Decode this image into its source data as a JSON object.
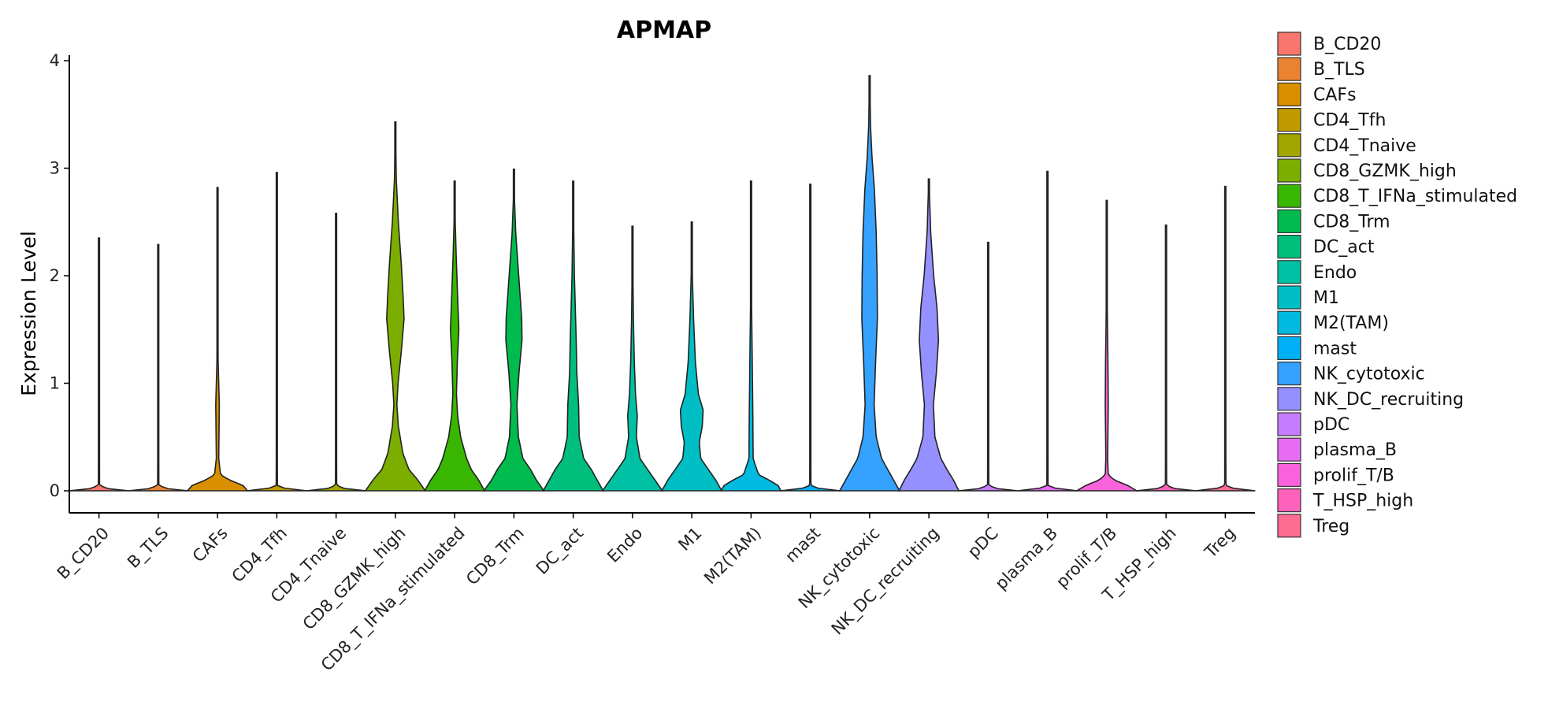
{
  "chart_data": {
    "type": "violin",
    "title": "APMAP",
    "xlabel": "",
    "ylabel": "Expression Level",
    "ylim": [
      -0.19,
      4.05
    ],
    "yticks": [
      0,
      1,
      2,
      3,
      4
    ],
    "grid": false,
    "legend_position": "right",
    "categories": [
      "B_CD20",
      "B_TLS",
      "CAFs",
      "CD4_Tfh",
      "CD4_Tnaive",
      "CD8_GZMK_high",
      "CD8_T_IFNa_stimulated",
      "CD8_Trm",
      "DC_act",
      "Endo",
      "M1",
      "M2(TAM)",
      "mast",
      "NK_cytotoxic",
      "NK_DC_recruiting",
      "pDC",
      "plasma_B",
      "prolif_T/B",
      "T_HSP_high",
      "Treg"
    ],
    "colors": [
      "#F8766D",
      "#EA8331",
      "#D89000",
      "#C09B00",
      "#A3A500",
      "#7CAE00",
      "#39B600",
      "#00BB4E",
      "#00BF7D",
      "#00C1A3",
      "#00BFC4",
      "#00BAE0",
      "#00B0F6",
      "#35A2FF",
      "#9590FF",
      "#C77CFF",
      "#E76BF3",
      "#FA62DB",
      "#FF62BC",
      "#FF6C91"
    ],
    "series": [
      {
        "name": "B_CD20",
        "max": 2.35,
        "profile": [
          [
            0,
            1.0
          ],
          [
            0.02,
            0.3
          ],
          [
            0.05,
            0.02
          ],
          [
            2.35,
            0.005
          ]
        ]
      },
      {
        "name": "B_TLS",
        "max": 2.29,
        "profile": [
          [
            0,
            1.0
          ],
          [
            0.02,
            0.3
          ],
          [
            0.05,
            0.02
          ],
          [
            2.29,
            0.005
          ]
        ]
      },
      {
        "name": "CAFs",
        "max": 2.82,
        "profile": [
          [
            0,
            1.0
          ],
          [
            0.05,
            0.85
          ],
          [
            0.1,
            0.4
          ],
          [
            0.15,
            0.1
          ],
          [
            0.3,
            0.04
          ],
          [
            0.8,
            0.06
          ],
          [
            1.2,
            0.02
          ],
          [
            2.0,
            0.008
          ],
          [
            2.82,
            0.004
          ]
        ]
      },
      {
        "name": "CD4_Tfh",
        "max": 2.96,
        "profile": [
          [
            0,
            1.0
          ],
          [
            0.02,
            0.3
          ],
          [
            0.05,
            0.02
          ],
          [
            2.96,
            0.005
          ]
        ]
      },
      {
        "name": "CD4_Tnaive",
        "max": 2.58,
        "profile": [
          [
            0,
            1.0
          ],
          [
            0.02,
            0.3
          ],
          [
            0.05,
            0.02
          ],
          [
            2.58,
            0.005
          ]
        ]
      },
      {
        "name": "CD8_GZMK_high",
        "max": 3.43,
        "profile": [
          [
            0,
            1.0
          ],
          [
            0.1,
            0.75
          ],
          [
            0.2,
            0.45
          ],
          [
            0.35,
            0.25
          ],
          [
            0.6,
            0.1
          ],
          [
            0.8,
            0.05
          ],
          [
            1.0,
            0.09
          ],
          [
            1.3,
            0.2
          ],
          [
            1.6,
            0.29
          ],
          [
            1.8,
            0.26
          ],
          [
            2.1,
            0.2
          ],
          [
            2.5,
            0.1
          ],
          [
            2.9,
            0.03
          ],
          [
            3.43,
            0.005
          ]
        ]
      },
      {
        "name": "CD8_T_IFNa_stimulated",
        "max": 2.88,
        "profile": [
          [
            0,
            1.0
          ],
          [
            0.1,
            0.8
          ],
          [
            0.2,
            0.55
          ],
          [
            0.3,
            0.4
          ],
          [
            0.5,
            0.2
          ],
          [
            0.7,
            0.1
          ],
          [
            0.9,
            0.06
          ],
          [
            1.2,
            0.09
          ],
          [
            1.5,
            0.14
          ],
          [
            1.8,
            0.1
          ],
          [
            2.2,
            0.05
          ],
          [
            2.5,
            0.02
          ],
          [
            2.88,
            0.005
          ]
        ]
      },
      {
        "name": "CD8_Trm",
        "max": 2.99,
        "profile": [
          [
            0,
            1.0
          ],
          [
            0.1,
            0.75
          ],
          [
            0.2,
            0.55
          ],
          [
            0.3,
            0.3
          ],
          [
            0.5,
            0.15
          ],
          [
            0.8,
            0.1
          ],
          [
            1.1,
            0.17
          ],
          [
            1.4,
            0.27
          ],
          [
            1.6,
            0.26
          ],
          [
            2.0,
            0.16
          ],
          [
            2.4,
            0.06
          ],
          [
            2.7,
            0.02
          ],
          [
            2.99,
            0.005
          ]
        ]
      },
      {
        "name": "DC_act",
        "max": 2.88,
        "profile": [
          [
            0,
            1.0
          ],
          [
            0.1,
            0.8
          ],
          [
            0.2,
            0.6
          ],
          [
            0.3,
            0.35
          ],
          [
            0.5,
            0.2
          ],
          [
            0.8,
            0.18
          ],
          [
            1.1,
            0.12
          ],
          [
            1.4,
            0.1
          ],
          [
            1.7,
            0.07
          ],
          [
            2.0,
            0.04
          ],
          [
            2.4,
            0.02
          ],
          [
            2.88,
            0.005
          ]
        ]
      },
      {
        "name": "Endo",
        "max": 2.46,
        "profile": [
          [
            0,
            1.0
          ],
          [
            0.1,
            0.75
          ],
          [
            0.2,
            0.5
          ],
          [
            0.3,
            0.25
          ],
          [
            0.5,
            0.13
          ],
          [
            0.7,
            0.16
          ],
          [
            0.9,
            0.1
          ],
          [
            1.2,
            0.06
          ],
          [
            1.6,
            0.03
          ],
          [
            2.0,
            0.015
          ],
          [
            2.46,
            0.004
          ]
        ]
      },
      {
        "name": "M1",
        "max": 2.5,
        "profile": [
          [
            0,
            1.0
          ],
          [
            0.1,
            0.8
          ],
          [
            0.2,
            0.55
          ],
          [
            0.3,
            0.3
          ],
          [
            0.45,
            0.25
          ],
          [
            0.6,
            0.35
          ],
          [
            0.75,
            0.38
          ],
          [
            0.9,
            0.22
          ],
          [
            1.2,
            0.12
          ],
          [
            1.6,
            0.06
          ],
          [
            2.0,
            0.02
          ],
          [
            2.5,
            0.004
          ]
        ]
      },
      {
        "name": "M2(TAM)",
        "max": 2.88,
        "profile": [
          [
            0,
            1.0
          ],
          [
            0.05,
            0.9
          ],
          [
            0.1,
            0.6
          ],
          [
            0.15,
            0.25
          ],
          [
            0.3,
            0.07
          ],
          [
            0.7,
            0.06
          ],
          [
            1.2,
            0.04
          ],
          [
            1.8,
            0.015
          ],
          [
            2.88,
            0.004
          ]
        ]
      },
      {
        "name": "mast",
        "max": 2.85,
        "profile": [
          [
            0,
            1.0
          ],
          [
            0.02,
            0.3
          ],
          [
            0.05,
            0.02
          ],
          [
            2.85,
            0.005
          ]
        ]
      },
      {
        "name": "NK_cytotoxic",
        "max": 3.86,
        "profile": [
          [
            0,
            1.0
          ],
          [
            0.1,
            0.8
          ],
          [
            0.2,
            0.6
          ],
          [
            0.3,
            0.4
          ],
          [
            0.5,
            0.22
          ],
          [
            0.8,
            0.15
          ],
          [
            1.2,
            0.2
          ],
          [
            1.6,
            0.26
          ],
          [
            2.0,
            0.25
          ],
          [
            2.4,
            0.22
          ],
          [
            2.8,
            0.16
          ],
          [
            3.1,
            0.08
          ],
          [
            3.4,
            0.03
          ],
          [
            3.86,
            0.005
          ]
        ]
      },
      {
        "name": "NK_DC_recruiting",
        "max": 2.9,
        "profile": [
          [
            0,
            1.0
          ],
          [
            0.1,
            0.82
          ],
          [
            0.2,
            0.6
          ],
          [
            0.3,
            0.4
          ],
          [
            0.5,
            0.2
          ],
          [
            0.8,
            0.15
          ],
          [
            1.1,
            0.25
          ],
          [
            1.4,
            0.32
          ],
          [
            1.7,
            0.27
          ],
          [
            2.0,
            0.16
          ],
          [
            2.4,
            0.06
          ],
          [
            2.9,
            0.005
          ]
        ]
      },
      {
        "name": "pDC",
        "max": 2.31,
        "profile": [
          [
            0,
            1.0
          ],
          [
            0.02,
            0.3
          ],
          [
            0.05,
            0.02
          ],
          [
            2.31,
            0.005
          ]
        ]
      },
      {
        "name": "plasma_B",
        "max": 2.97,
        "profile": [
          [
            0,
            1.0
          ],
          [
            0.02,
            0.3
          ],
          [
            0.05,
            0.02
          ],
          [
            2.97,
            0.005
          ]
        ]
      },
      {
        "name": "prolif_T/B",
        "max": 2.7,
        "profile": [
          [
            0,
            1.0
          ],
          [
            0.05,
            0.7
          ],
          [
            0.1,
            0.25
          ],
          [
            0.15,
            0.05
          ],
          [
            0.3,
            0.03
          ],
          [
            0.8,
            0.05
          ],
          [
            1.2,
            0.04
          ],
          [
            1.5,
            0.025
          ],
          [
            2.0,
            0.008
          ],
          [
            2.7,
            0.003
          ]
        ]
      },
      {
        "name": "T_HSP_high",
        "max": 2.47,
        "profile": [
          [
            0,
            1.0
          ],
          [
            0.02,
            0.3
          ],
          [
            0.05,
            0.02
          ],
          [
            2.47,
            0.005
          ]
        ]
      },
      {
        "name": "Treg",
        "max": 2.83,
        "profile": [
          [
            0,
            1.0
          ],
          [
            0.02,
            0.3
          ],
          [
            0.05,
            0.02
          ],
          [
            2.83,
            0.005
          ]
        ]
      }
    ]
  }
}
